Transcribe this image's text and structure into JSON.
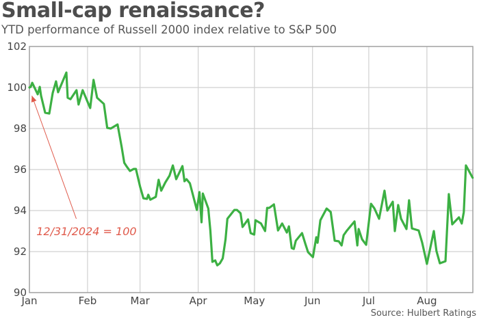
{
  "chart_data": {
    "type": "line",
    "title": "Small-cap renaissance?",
    "subtitle": "YTD performance of Russell 2000 index relative to S&P 500",
    "source": "Source: Hulbert Ratings",
    "xlabel": "",
    "ylabel": "",
    "x_unit": "day of year 2025 (Jan 1 = 0)",
    "xlim": [
      0,
      236.5
    ],
    "ylim": [
      90,
      102
    ],
    "grid": true,
    "yticks": [
      90,
      92,
      94,
      96,
      98,
      100,
      102
    ],
    "ytick_labels": [
      "90",
      "92",
      "94",
      "96",
      "98",
      "100",
      "102"
    ],
    "xticks": [
      0,
      31,
      59,
      90,
      120,
      151,
      181,
      212
    ],
    "xtick_labels": [
      "Jan",
      "Feb",
      "Mar",
      "Apr",
      "May",
      "Jun",
      "Jul",
      "Aug"
    ],
    "colors": {
      "line": "#3cb043",
      "annotation": "#e05a4b",
      "grid": "#d0d0d0",
      "axis": "#a0a0a0"
    },
    "annotation": {
      "text": "12/31/2024 = 100",
      "arrow_from": [
        25,
        93.6
      ],
      "arrow_to": [
        1.3,
        99.6
      ],
      "text_at": [
        3,
        93.0
      ]
    },
    "series": [
      {
        "name": "Russell 2000 relative to S&P 500",
        "points": [
          [
            0,
            100.0
          ],
          [
            0.7,
            100.03
          ],
          [
            1.5,
            100.23
          ],
          [
            4.4,
            99.67
          ],
          [
            5.5,
            100.03
          ],
          [
            6.2,
            99.6
          ],
          [
            8.4,
            98.77
          ],
          [
            10.6,
            98.73
          ],
          [
            12.4,
            99.73
          ],
          [
            14.2,
            100.3
          ],
          [
            15.3,
            99.77
          ],
          [
            19.7,
            100.73
          ],
          [
            20.4,
            99.5
          ],
          [
            21.9,
            99.43
          ],
          [
            25.1,
            99.87
          ],
          [
            26.2,
            99.17
          ],
          [
            28.4,
            99.87
          ],
          [
            32.4,
            99.0
          ],
          [
            34.2,
            100.37
          ],
          [
            36.1,
            99.5
          ],
          [
            39.7,
            99.2
          ],
          [
            41.5,
            98.03
          ],
          [
            43.4,
            98.0
          ],
          [
            47.0,
            98.2
          ],
          [
            49.2,
            97.1
          ],
          [
            50.6,
            96.33
          ],
          [
            51.7,
            96.17
          ],
          [
            53.6,
            95.93
          ],
          [
            55.7,
            96.03
          ],
          [
            56.8,
            96.03
          ],
          [
            59.0,
            95.17
          ],
          [
            60.8,
            94.6
          ],
          [
            62.7,
            94.57
          ],
          [
            63.4,
            94.77
          ],
          [
            64.5,
            94.53
          ],
          [
            67.4,
            94.67
          ],
          [
            68.9,
            95.5
          ],
          [
            70.3,
            94.97
          ],
          [
            72.5,
            95.37
          ],
          [
            74.7,
            95.7
          ],
          [
            76.5,
            96.2
          ],
          [
            78.3,
            95.53
          ],
          [
            81.6,
            96.17
          ],
          [
            82.7,
            95.43
          ],
          [
            83.8,
            95.53
          ],
          [
            85.6,
            95.33
          ],
          [
            89.3,
            94.03
          ],
          [
            90.7,
            94.9
          ],
          [
            91.8,
            93.43
          ],
          [
            92.5,
            94.83
          ],
          [
            95.4,
            94.1
          ],
          [
            96.5,
            93.03
          ],
          [
            97.6,
            91.5
          ],
          [
            99.1,
            91.57
          ],
          [
            100.2,
            91.33
          ],
          [
            101.6,
            91.43
          ],
          [
            103.1,
            91.67
          ],
          [
            104.6,
            92.6
          ],
          [
            105.6,
            93.6
          ],
          [
            109.3,
            94.03
          ],
          [
            110.7,
            94.03
          ],
          [
            112.6,
            93.87
          ],
          [
            113.7,
            93.2
          ],
          [
            116.6,
            93.57
          ],
          [
            118.0,
            92.9
          ],
          [
            119.9,
            92.83
          ],
          [
            120.6,
            93.53
          ],
          [
            123.5,
            93.37
          ],
          [
            125.7,
            93.0
          ],
          [
            126.8,
            94.13
          ],
          [
            127.9,
            94.13
          ],
          [
            130.4,
            94.3
          ],
          [
            132.6,
            93.03
          ],
          [
            134.8,
            93.37
          ],
          [
            137.3,
            92.93
          ],
          [
            138.4,
            93.23
          ],
          [
            139.9,
            92.17
          ],
          [
            141.0,
            92.13
          ],
          [
            142.1,
            92.53
          ],
          [
            145.4,
            92.9
          ],
          [
            147.2,
            92.37
          ],
          [
            148.6,
            91.97
          ],
          [
            151.2,
            91.73
          ],
          [
            153.0,
            92.7
          ],
          [
            153.7,
            92.43
          ],
          [
            155.2,
            93.53
          ],
          [
            158.5,
            94.1
          ],
          [
            160.7,
            93.93
          ],
          [
            162.8,
            92.53
          ],
          [
            165.0,
            92.5
          ],
          [
            166.5,
            92.3
          ],
          [
            167.6,
            92.8
          ],
          [
            169.4,
            93.03
          ],
          [
            173.4,
            93.47
          ],
          [
            174.9,
            92.3
          ],
          [
            175.6,
            93.1
          ],
          [
            177.4,
            92.6
          ],
          [
            179.6,
            92.33
          ],
          [
            182.2,
            94.33
          ],
          [
            184.0,
            94.1
          ],
          [
            186.5,
            93.6
          ],
          [
            189.4,
            94.97
          ],
          [
            190.9,
            94.0
          ],
          [
            193.8,
            94.43
          ],
          [
            194.9,
            93.0
          ],
          [
            196.7,
            94.27
          ],
          [
            198.2,
            93.6
          ],
          [
            201.1,
            93.1
          ],
          [
            202.5,
            94.5
          ],
          [
            204.0,
            93.13
          ],
          [
            207.6,
            93.03
          ],
          [
            209.5,
            92.43
          ],
          [
            212.0,
            91.4
          ],
          [
            215.7,
            93.0
          ],
          [
            217.1,
            92.03
          ],
          [
            218.9,
            91.43
          ],
          [
            221.9,
            91.53
          ],
          [
            223.7,
            94.8
          ],
          [
            225.5,
            93.33
          ],
          [
            229.1,
            93.67
          ],
          [
            230.6,
            93.37
          ],
          [
            231.7,
            93.93
          ],
          [
            232.8,
            96.2
          ],
          [
            236.4,
            95.6
          ]
        ]
      }
    ]
  }
}
